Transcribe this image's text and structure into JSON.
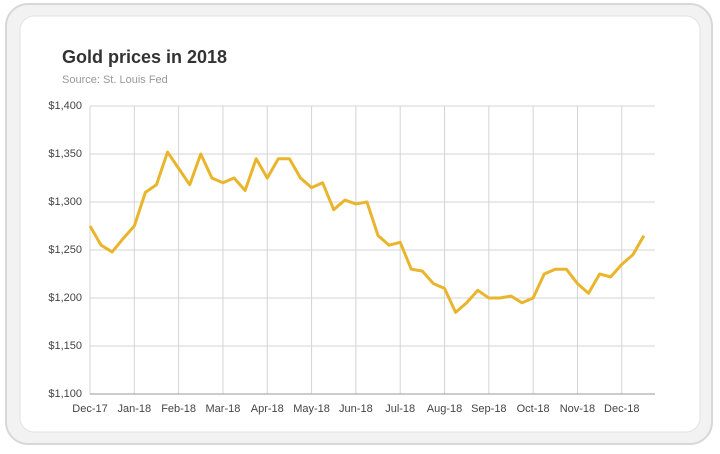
{
  "chart_data": {
    "type": "line",
    "title": "Gold prices in 2018",
    "subtitle": "Source: St. Louis Fed",
    "x": [
      "Dec-17",
      "Dec-17",
      "Dec-17",
      "Dec-17",
      "Jan-18",
      "Jan-18",
      "Jan-18",
      "Jan-18",
      "Feb-18",
      "Feb-18",
      "Feb-18",
      "Feb-18",
      "Mar-18",
      "Mar-18",
      "Mar-18",
      "Mar-18",
      "Apr-18",
      "Apr-18",
      "Apr-18",
      "Apr-18",
      "May-18",
      "May-18",
      "May-18",
      "May-18",
      "Jun-18",
      "Jun-18",
      "Jun-18",
      "Jun-18",
      "Jul-18",
      "Jul-18",
      "Jul-18",
      "Jul-18",
      "Aug-18",
      "Aug-18",
      "Aug-18",
      "Aug-18",
      "Sep-18",
      "Sep-18",
      "Sep-18",
      "Sep-18",
      "Oct-18",
      "Oct-18",
      "Oct-18",
      "Oct-18",
      "Nov-18",
      "Nov-18",
      "Nov-18",
      "Nov-18",
      "Dec-18",
      "Dec-18",
      "Dec-18"
    ],
    "series": [
      {
        "name": "Gold price",
        "color": "#e9b52c",
        "values": [
          1275,
          1255,
          1248,
          1262,
          1275,
          1310,
          1318,
          1352,
          1335,
          1318,
          1350,
          1325,
          1320,
          1325,
          1312,
          1345,
          1325,
          1345,
          1345,
          1325,
          1315,
          1320,
          1292,
          1302,
          1298,
          1300,
          1265,
          1255,
          1258,
          1230,
          1228,
          1215,
          1210,
          1185,
          1195,
          1208,
          1200,
          1200,
          1202,
          1195,
          1200,
          1225,
          1230,
          1230,
          1215,
          1205,
          1225,
          1222,
          1235,
          1245,
          1265
        ]
      }
    ],
    "ylim": [
      1100,
      1400
    ],
    "yticks": [
      {
        "value": 1100,
        "label": "$1,100"
      },
      {
        "value": 1150,
        "label": "$1,150"
      },
      {
        "value": 1200,
        "label": "$1,200"
      },
      {
        "value": 1250,
        "label": "$1,250"
      },
      {
        "value": 1300,
        "label": "$1,300"
      },
      {
        "value": 1350,
        "label": "$1,350"
      },
      {
        "value": 1400,
        "label": "$1,400"
      }
    ],
    "grid": true
  }
}
